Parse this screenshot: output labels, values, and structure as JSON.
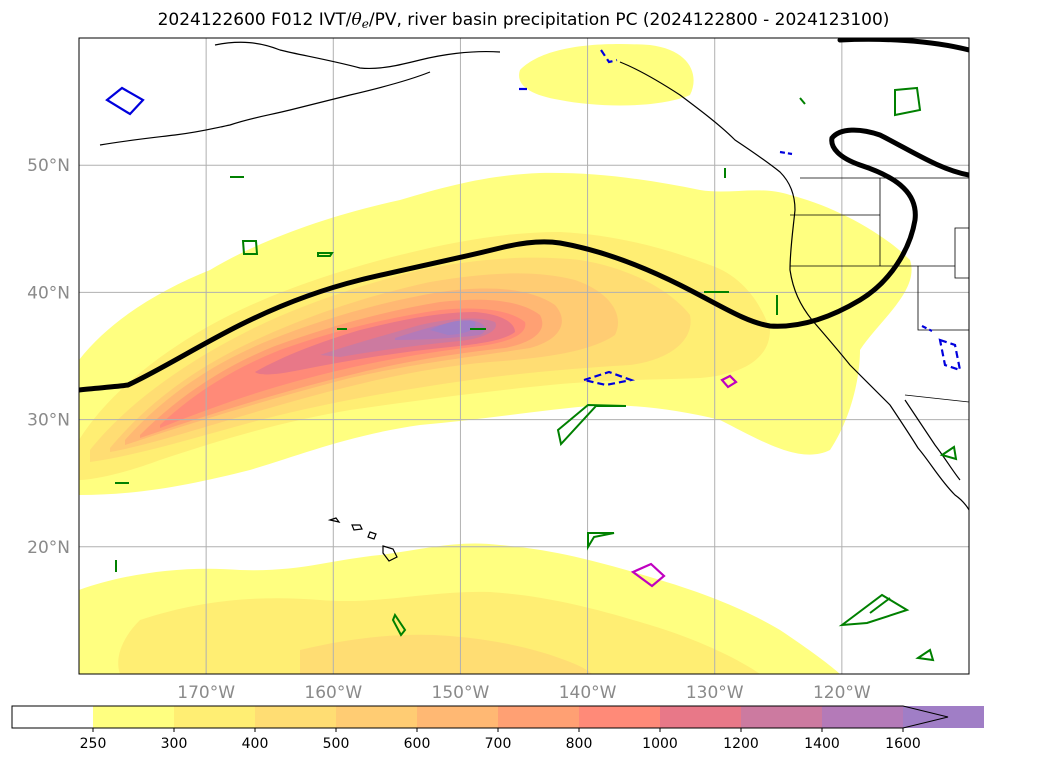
{
  "title": {
    "prefix": "2024122600 F012 IVT/",
    "theta": "θ",
    "theta_sub": "e",
    "suffix": "/PV, river basin precipitation PC (2024122800 - 2024123100)"
  },
  "map": {
    "lon_range": [
      -180,
      -110
    ],
    "lat_range": [
      10,
      60
    ],
    "lat_labels": [
      {
        "lat": 50,
        "label": "50°N"
      },
      {
        "lat": 40,
        "label": "40°N"
      },
      {
        "lat": 30,
        "label": "30°N"
      },
      {
        "lat": 20,
        "label": "20°N"
      }
    ],
    "lon_labels": [
      {
        "lon": -170,
        "label": "170°W"
      },
      {
        "lon": -160,
        "label": "160°W"
      },
      {
        "lon": -150,
        "label": "150°W"
      },
      {
        "lon": -140,
        "label": "140°W"
      },
      {
        "lon": -130,
        "label": "130°W"
      },
      {
        "lon": -120,
        "label": "120°W"
      }
    ],
    "grid": true
  },
  "colorbar": {
    "levels": [
      "250",
      "300",
      "400",
      "500",
      "600",
      "700",
      "800",
      "1000",
      "1200",
      "1400",
      "1600"
    ],
    "colors": [
      "#ffff80",
      "#ffee73",
      "#ffdd73",
      "#ffcc73",
      "#ffb873",
      "#ffa073",
      "#ff8a78",
      "#e87888",
      "#cc7aa0",
      "#b47ab8",
      "#a07ec6"
    ],
    "under_color": "#ffffff",
    "extend": "max"
  },
  "pv_line_color": "#000000",
  "theta_contour_colors": {
    "green": "#008000",
    "blue": "#0000dd",
    "magenta": "#c000c0"
  }
}
